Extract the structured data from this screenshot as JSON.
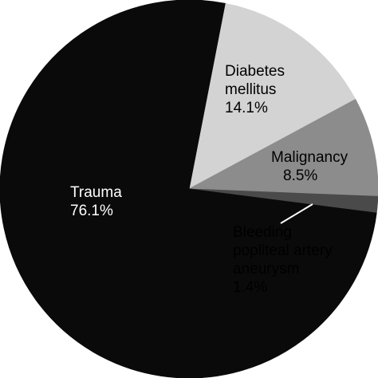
{
  "chart_data": {
    "type": "pie",
    "categories": [
      "Diabetes mellitus",
      "Malignancy",
      "Bleeding popliteal artery aneurysm",
      "Trauma"
    ],
    "values": [
      14.1,
      8.5,
      1.4,
      76.1
    ],
    "value_labels": [
      "14.1%",
      "8.5%",
      "1.4%",
      "76.1%"
    ],
    "colors": [
      "#d3d3d3",
      "#8c8c8c",
      "#4a4a4a",
      "#0a0a0a"
    ]
  }
}
